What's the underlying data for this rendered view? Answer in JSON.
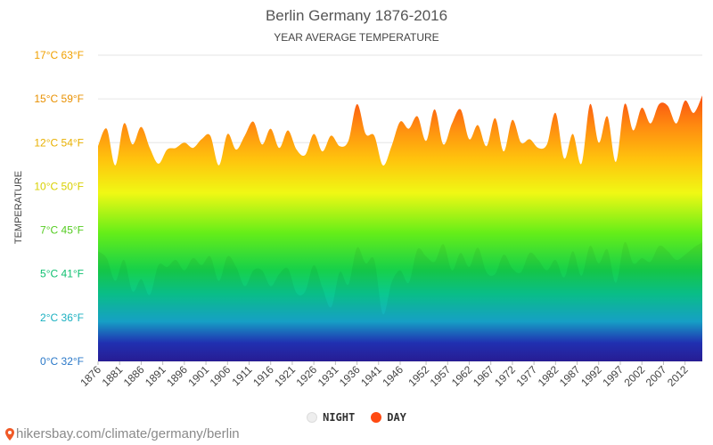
{
  "chart_data": {
    "type": "area",
    "title": "Berlin Germany 1876-2016",
    "subtitle": "YEAR AVERAGE TEMPERATURE",
    "ylabel": "TEMPERATURE",
    "ylim": [
      0,
      17
    ],
    "y_ticks": [
      "0°C 32°F",
      "2°C 36°F",
      "5°C 41°F",
      "7°C 45°F",
      "10°C 50°F",
      "12°C 54°F",
      "15°C 59°F",
      "17°C 63°F"
    ],
    "y_tick_values": [
      0,
      2.5,
      5,
      7.5,
      10,
      12.5,
      15,
      17.5
    ],
    "x_tick_labels": [
      "1876",
      "1881",
      "1886",
      "1891",
      "1896",
      "1901",
      "1906",
      "1911",
      "1916",
      "1921",
      "1926",
      "1931",
      "1936",
      "1941",
      "1946",
      "1952",
      "1957",
      "1962",
      "1967",
      "1972",
      "1977",
      "1982",
      "1987",
      "1992",
      "1997",
      "2002",
      "2007",
      "2012"
    ],
    "legend": [
      "NIGHT",
      "DAY"
    ],
    "colors": {
      "day": "#ff4a12",
      "night": "#eeeeee"
    },
    "years": [
      1876,
      1878,
      1880,
      1882,
      1884,
      1886,
      1888,
      1890,
      1892,
      1894,
      1896,
      1898,
      1900,
      1902,
      1904,
      1906,
      1908,
      1910,
      1912,
      1914,
      1916,
      1918,
      1920,
      1922,
      1924,
      1926,
      1928,
      1930,
      1932,
      1934,
      1936,
      1938,
      1940,
      1942,
      1944,
      1946,
      1948,
      1950,
      1952,
      1954,
      1956,
      1958,
      1960,
      1962,
      1964,
      1966,
      1968,
      1970,
      1972,
      1974,
      1976,
      1978,
      1980,
      1982,
      1984,
      1986,
      1988,
      1990,
      1992,
      1994,
      1996,
      1998,
      2000,
      2002,
      2004,
      2006,
      2008,
      2010,
      2012,
      2014,
      2016
    ],
    "series": [
      {
        "name": "DAY",
        "values": [
          12.3,
          13.3,
          11.2,
          13.6,
          12.4,
          13.4,
          12.2,
          11.3,
          12.1,
          12.2,
          12.5,
          12.2,
          12.7,
          12.9,
          11.2,
          13.0,
          12.1,
          12.9,
          13.7,
          12.4,
          13.3,
          12.2,
          13.2,
          12.1,
          11.8,
          13.0,
          12.0,
          12.9,
          12.3,
          12.6,
          14.7,
          13.0,
          12.9,
          11.2,
          12.3,
          13.7,
          13.3,
          14.0,
          12.6,
          14.4,
          12.4,
          13.6,
          14.4,
          12.7,
          13.5,
          12.3,
          13.9,
          12.0,
          13.8,
          12.5,
          12.7,
          12.2,
          12.4,
          14.2,
          11.6,
          13.0,
          11.3,
          14.7,
          12.5,
          14.0,
          11.4,
          14.7,
          13.2,
          14.5,
          13.6,
          14.7,
          14.6,
          13.6,
          14.9,
          14.2,
          15.2
        ]
      },
      {
        "name": "NIGHT",
        "values": [
          6.3,
          5.9,
          4.6,
          5.8,
          4.0,
          4.7,
          3.8,
          5.5,
          5.4,
          5.8,
          5.2,
          5.9,
          5.5,
          6.0,
          4.6,
          6.0,
          5.4,
          4.3,
          5.2,
          5.2,
          4.3,
          5.0,
          5.3,
          3.9,
          4.0,
          5.5,
          4.2,
          3.1,
          5.1,
          4.4,
          6.5,
          5.6,
          5.8,
          2.7,
          4.5,
          5.2,
          4.5,
          6.4,
          6.0,
          5.7,
          6.7,
          5.2,
          6.2,
          5.4,
          6.5,
          5.1,
          5.0,
          6.1,
          5.3,
          5.1,
          6.2,
          5.8,
          5.2,
          5.8,
          4.8,
          6.3,
          4.9,
          6.6,
          5.6,
          6.4,
          4.5,
          6.8,
          5.6,
          5.9,
          5.7,
          6.6,
          6.3,
          5.8,
          6.1,
          6.5,
          6.8
        ]
      }
    ]
  },
  "legend_labels": {
    "night": "NIGHT",
    "day": "DAY"
  },
  "source_text": "hikersbay.com/climate/germany/berlin"
}
